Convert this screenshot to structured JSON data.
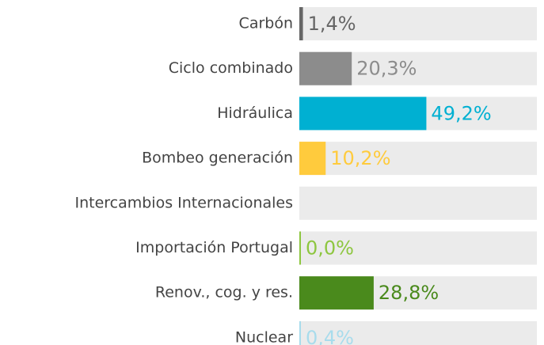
{
  "chart_data": {
    "type": "bar",
    "orientation": "horizontal",
    "categories": [
      "Carbón",
      "Ciclo combinado",
      "Hidráulica",
      "Bombeo generación",
      "Intercambios Internacionales",
      "Importación Portugal",
      "Renov., cog. y res.",
      "Nuclear"
    ],
    "values": [
      1.4,
      20.3,
      49.2,
      10.2,
      null,
      0.0,
      28.8,
      0.4
    ],
    "value_labels": [
      "1,4%",
      "20,3%",
      "49,2%",
      "10,2%",
      null,
      "0,0%",
      "28,8%",
      "0,4%"
    ],
    "colors": [
      "#666666",
      "#8c8c8c",
      "#00b0d2",
      "#ffcb3d",
      null,
      "#8dc63f",
      "#4a8a1c",
      "#a8dcec"
    ],
    "xlim": [
      0,
      92
    ]
  }
}
